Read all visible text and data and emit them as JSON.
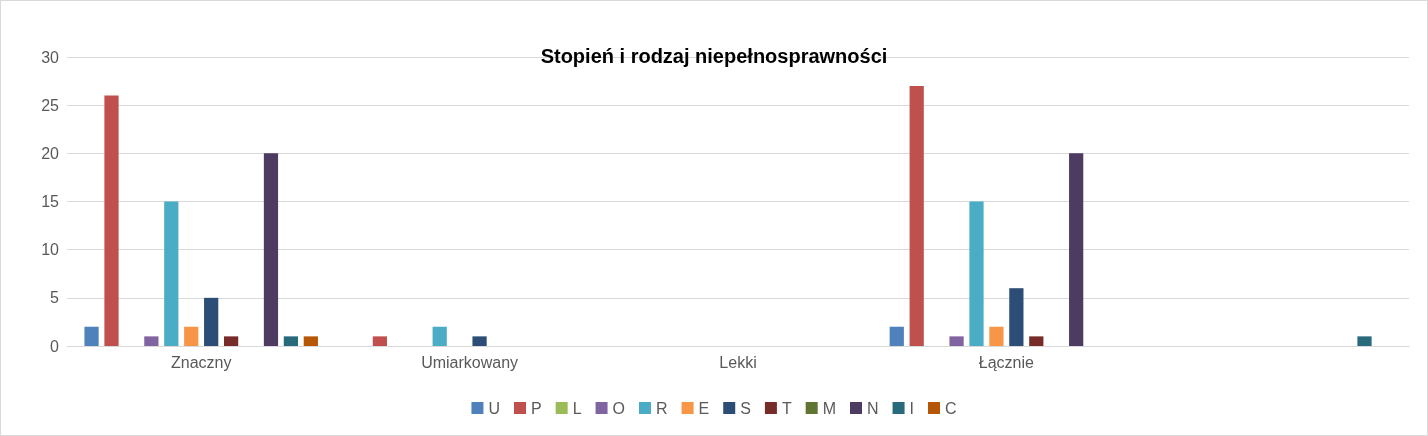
{
  "chart_data": {
    "type": "bar",
    "title": "Stopień i rodzaj niepełnosprawności",
    "categories": [
      "Znaczny",
      "Umiarkowany",
      "Lekki",
      "Łącznie",
      null
    ],
    "series": [
      {
        "name": "U",
        "color": "#4f81bd",
        "values": [
          2,
          0,
          0,
          2,
          0
        ]
      },
      {
        "name": "P",
        "color": "#c0504d",
        "values": [
          26,
          1,
          0,
          27,
          0
        ]
      },
      {
        "name": "L",
        "color": "#9bbb59",
        "values": [
          0,
          0,
          0,
          0,
          0
        ]
      },
      {
        "name": "O",
        "color": "#8064a2",
        "values": [
          1,
          0,
          0,
          1,
          0
        ]
      },
      {
        "name": "R",
        "color": "#4bacc6",
        "values": [
          15,
          2,
          0,
          15,
          0
        ]
      },
      {
        "name": "E",
        "color": "#f79646",
        "values": [
          2,
          0,
          0,
          2,
          0
        ]
      },
      {
        "name": "S",
        "color": "#2c4d75",
        "values": [
          5,
          1,
          0,
          6,
          0
        ]
      },
      {
        "name": "T",
        "color": "#772c2a",
        "values": [
          1,
          0,
          0,
          1,
          0
        ]
      },
      {
        "name": "M",
        "color": "#5f7530",
        "values": [
          0,
          0,
          0,
          0,
          0
        ]
      },
      {
        "name": "N",
        "color": "#4d3b62",
        "values": [
          20,
          0,
          0,
          20,
          0
        ]
      },
      {
        "name": "I",
        "color": "#276a7c",
        "values": [
          1,
          0,
          0,
          0,
          1
        ]
      },
      {
        "name": "C",
        "color": "#b65708",
        "values": [
          1,
          0,
          0,
          0,
          0
        ]
      }
    ],
    "ylim": [
      0,
      30
    ],
    "yticks": [
      0,
      5,
      10,
      15,
      20,
      25,
      30
    ],
    "grid": "y",
    "legend": "bottom"
  }
}
